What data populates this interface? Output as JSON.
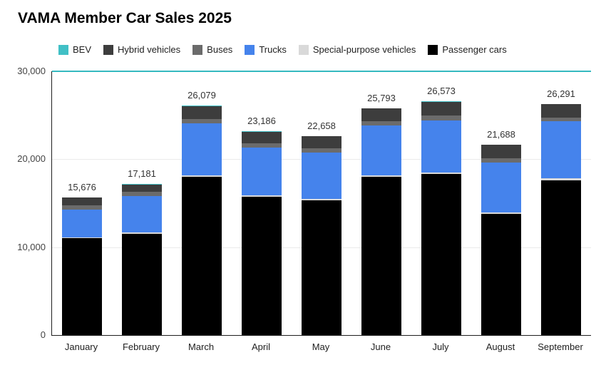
{
  "chart_data": {
    "type": "bar",
    "stacked": true,
    "title": "VAMA Member Car Sales 2025",
    "categories": [
      "January",
      "February",
      "March",
      "April",
      "May",
      "June",
      "July",
      "August",
      "September"
    ],
    "series": [
      {
        "name": "Passenger cars",
        "color": "#000000",
        "values": [
          11000,
          11500,
          18000,
          15700,
          15300,
          18000,
          18300,
          13800,
          17600
        ]
      },
      {
        "name": "Special-purpose vehicles",
        "color": "#d9d9d9",
        "values": [
          150,
          150,
          200,
          200,
          200,
          200,
          200,
          150,
          200
        ]
      },
      {
        "name": "Trucks",
        "color": "#4583ec",
        "values": [
          3100,
          4200,
          5900,
          5400,
          5300,
          5600,
          5900,
          5700,
          6500
        ]
      },
      {
        "name": "Buses",
        "color": "#6b6b6b",
        "values": [
          500,
          450,
          500,
          500,
          450,
          500,
          550,
          450,
          400
        ]
      },
      {
        "name": "Hybrid vehicles",
        "color": "#3d3d3d",
        "values": [
          900,
          850,
          1450,
          1350,
          1380,
          1460,
          1590,
          1560,
          1560
        ]
      },
      {
        "name": "BEV",
        "color": "#41c0c6",
        "values": [
          26,
          31,
          29,
          36,
          28,
          33,
          33,
          28,
          31
        ]
      }
    ],
    "totals_formatted": [
      "15,676",
      "17,181",
      "26,079",
      "23,186",
      "22,658",
      "25,793",
      "26,573",
      "21,688",
      "26,291"
    ],
    "legend": [
      {
        "label": "BEV",
        "color": "#41c0c6"
      },
      {
        "label": "Hybrid vehicles",
        "color": "#3d3d3d"
      },
      {
        "label": "Buses",
        "color": "#6b6b6b"
      },
      {
        "label": "Trucks",
        "color": "#4583ec"
      },
      {
        "label": "Special-purpose vehicles",
        "color": "#d9d9d9"
      },
      {
        "label": "Passenger cars",
        "color": "#000000"
      }
    ],
    "legend_position": "top",
    "y_ticks": [
      "30,000",
      "20,000",
      "10,000",
      "0"
    ],
    "ylim": [
      0,
      30000
    ],
    "grid": true,
    "style": {
      "top_gridline_color": "#35b9c0",
      "minor_gridline_color": "#ebebeb",
      "axis_color": "#1f1f1f"
    }
  }
}
